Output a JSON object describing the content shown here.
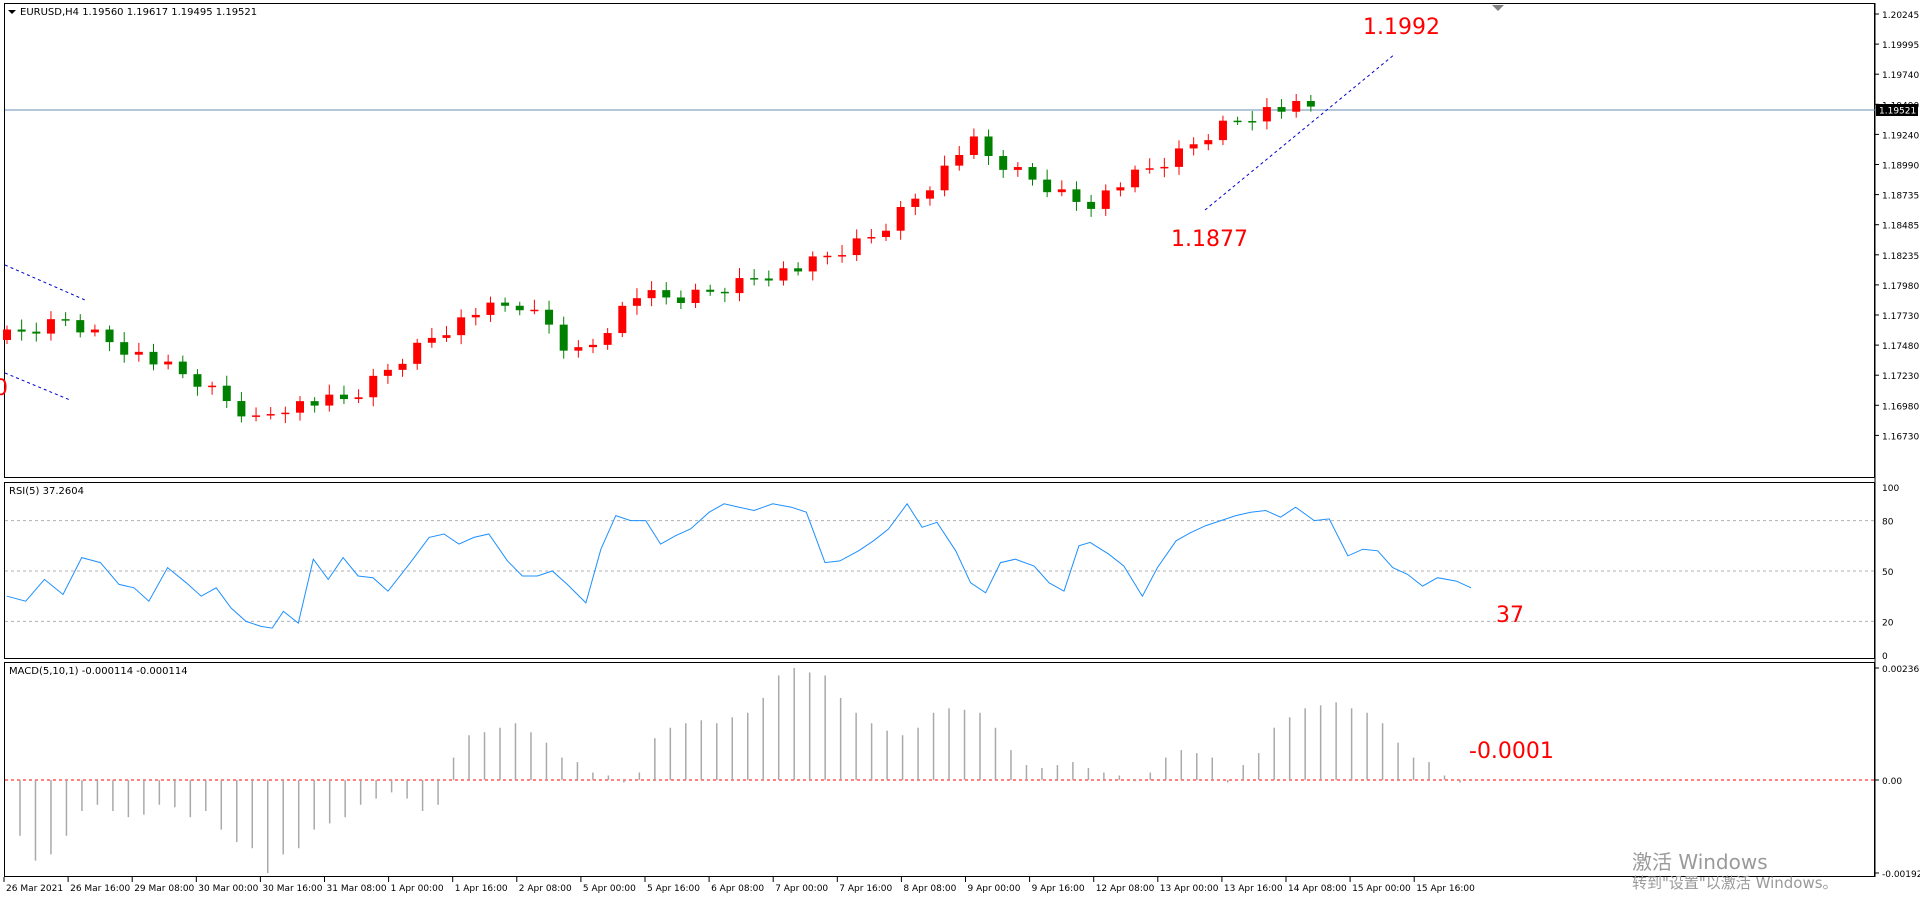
{
  "main": {
    "header": "EURUSD,H4  1.19560 1.19617 1.19495 1.19521",
    "price_tag": "1.19521",
    "high_label": "1.1992",
    "low_label": "1.1877",
    "left_label": "0",
    "price_axis": [
      "1.20245",
      "1.19995",
      "1.19740",
      "1.19490",
      "1.19240",
      "1.18990",
      "1.18735",
      "1.18485",
      "1.18235",
      "1.17980",
      "1.17730",
      "1.17480",
      "1.17230",
      "1.16980",
      "1.16730"
    ],
    "last_price": 1.19521,
    "colors": {
      "bull": "#008000",
      "bear": "#ff0000",
      "label": "#ff0000",
      "price_line": "#6a8fb5",
      "trend": "#0000cc"
    }
  },
  "rsi": {
    "header": "RSI(5) 37.2604",
    "value_label": "37",
    "levels": [
      "100",
      "80",
      "50",
      "20",
      "0"
    ],
    "color": "#1e90ff"
  },
  "macd": {
    "header": "MACD(5,10,1) -0.000114 -0.000114",
    "value_label": "-0.0001",
    "axis": [
      "0.002361",
      "0.00",
      "-0.001922"
    ]
  },
  "time_axis": [
    "26 Mar 2021",
    "26 Mar 16:00",
    "29 Mar 08:00",
    "30 Mar 00:00",
    "30 Mar 16:00",
    "31 Mar 08:00",
    "1 Apr 00:00",
    "1 Apr 16:00",
    "2 Apr 08:00",
    "5 Apr 00:00",
    "5 Apr 16:00",
    "6 Apr 08:00",
    "7 Apr 00:00",
    "7 Apr 16:00",
    "8 Apr 08:00",
    "9 Apr 00:00",
    "9 Apr 16:00",
    "12 Apr 08:00",
    "13 Apr 00:00",
    "13 Apr 16:00",
    "14 Apr 08:00",
    "15 Apr 00:00",
    "15 Apr 16:00"
  ],
  "watermark": {
    "line1": "激活 Windows",
    "line2": "转到\"设置\"以激活 Windows。"
  }
}
